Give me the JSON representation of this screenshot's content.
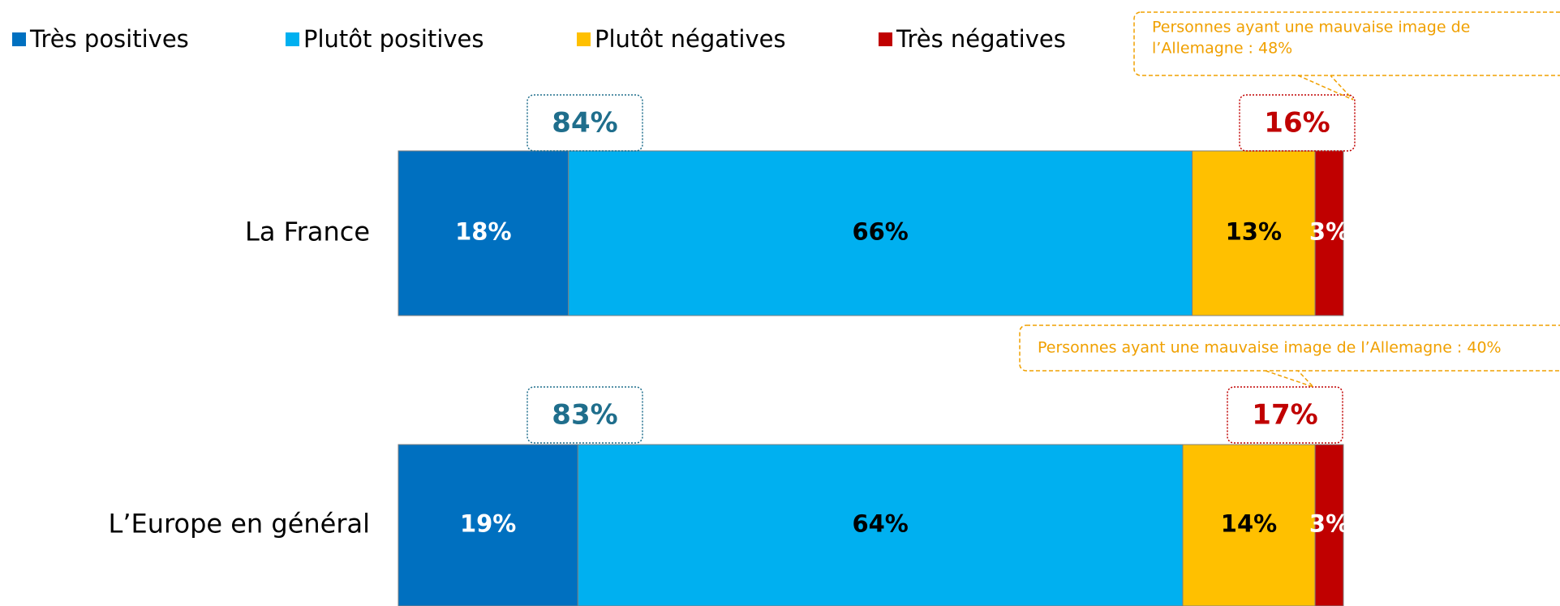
{
  "chart_data": {
    "type": "stacked-bar-horizontal",
    "categories": [
      "La France",
      "L’Europe en général"
    ],
    "series": [
      {
        "name": "Très positives",
        "color": "#0070C0",
        "label_color": "#ffffff",
        "values": [
          18,
          19
        ],
        "value_labels": [
          "18%",
          "19%"
        ]
      },
      {
        "name": "Plutôt positives",
        "color": "#00B0F0",
        "label_color": "#000000",
        "values": [
          66,
          64
        ],
        "value_labels": [
          "66%",
          "64%"
        ]
      },
      {
        "name": "Plutôt négatives",
        "color": "#FFC000",
        "label_color": "#000000",
        "values": [
          13,
          14
        ],
        "value_labels": [
          "13%",
          "14%"
        ]
      },
      {
        "name": "Très négatives",
        "color": "#C00000",
        "label_color": "#ffffff",
        "values": [
          3,
          3
        ],
        "value_labels": [
          "3%",
          "3%"
        ]
      }
    ],
    "xlim": [
      0,
      100
    ],
    "totals": [
      {
        "positive": {
          "value": 84,
          "label": "84%"
        },
        "negative": {
          "value": 16,
          "label": "16%"
        }
      },
      {
        "positive": {
          "value": 83,
          "label": "83%"
        },
        "negative": {
          "value": 17,
          "label": "17%"
        }
      }
    ],
    "callouts": [
      {
        "lines": [
          "Personnes ayant une mauvaise image de",
          "l’Allemagne  : 48%"
        ]
      },
      {
        "lines": [
          "Personnes ayant une mauvaise image de l’Allemagne  : 40%"
        ]
      }
    ]
  }
}
